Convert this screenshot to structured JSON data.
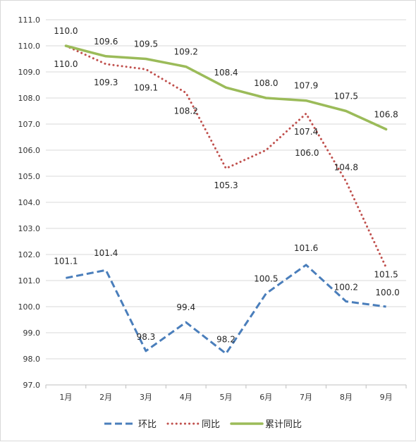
{
  "chart_data": {
    "type": "line",
    "categories": [
      "1月",
      "2月",
      "3月",
      "4月",
      "5月",
      "6月",
      "7月",
      "8月",
      "9月"
    ],
    "ylim": [
      97.0,
      111.0
    ],
    "ytick_labels": [
      "97.0",
      "98.0",
      "99.0",
      "100.0",
      "101.0",
      "102.0",
      "103.0",
      "104.0",
      "105.0",
      "106.0",
      "107.0",
      "108.0",
      "109.0",
      "110.0",
      "111.0"
    ],
    "yticks": [
      97,
      98,
      99,
      100,
      101,
      102,
      103,
      104,
      105,
      106,
      107,
      108,
      109,
      110,
      111
    ],
    "grid": true,
    "legend_position": "bottom",
    "series": [
      {
        "name": "环比",
        "values": [
          101.1,
          101.4,
          98.3,
          99.4,
          98.2,
          100.5,
          101.6,
          100.2,
          100.0
        ],
        "labels": [
          "101.1",
          "101.4",
          "98.3",
          "99.4",
          "98.2",
          "100.5",
          "101.6",
          "100.2",
          "100.0"
        ],
        "color": "#4a7ebb",
        "style": "dashed"
      },
      {
        "name": "同比",
        "values": [
          110.0,
          109.3,
          109.1,
          108.2,
          105.3,
          106.0,
          107.4,
          104.8,
          101.5
        ],
        "labels": [
          "110.0",
          "109.3",
          "109.1",
          "108.2",
          "105.3",
          "106.0",
          "107.4",
          "104.8",
          "101.5"
        ],
        "color": "#c0504d",
        "style": "dotted"
      },
      {
        "name": "累计同比",
        "values": [
          110.0,
          109.6,
          109.5,
          109.2,
          108.4,
          108.0,
          107.9,
          107.5,
          106.8
        ],
        "labels": [
          "110.0",
          "109.6",
          "109.5",
          "109.2",
          "108.4",
          "108.0",
          "107.9",
          "107.5",
          "106.8"
        ],
        "color": "#9bbb59",
        "style": "solid"
      }
    ]
  }
}
